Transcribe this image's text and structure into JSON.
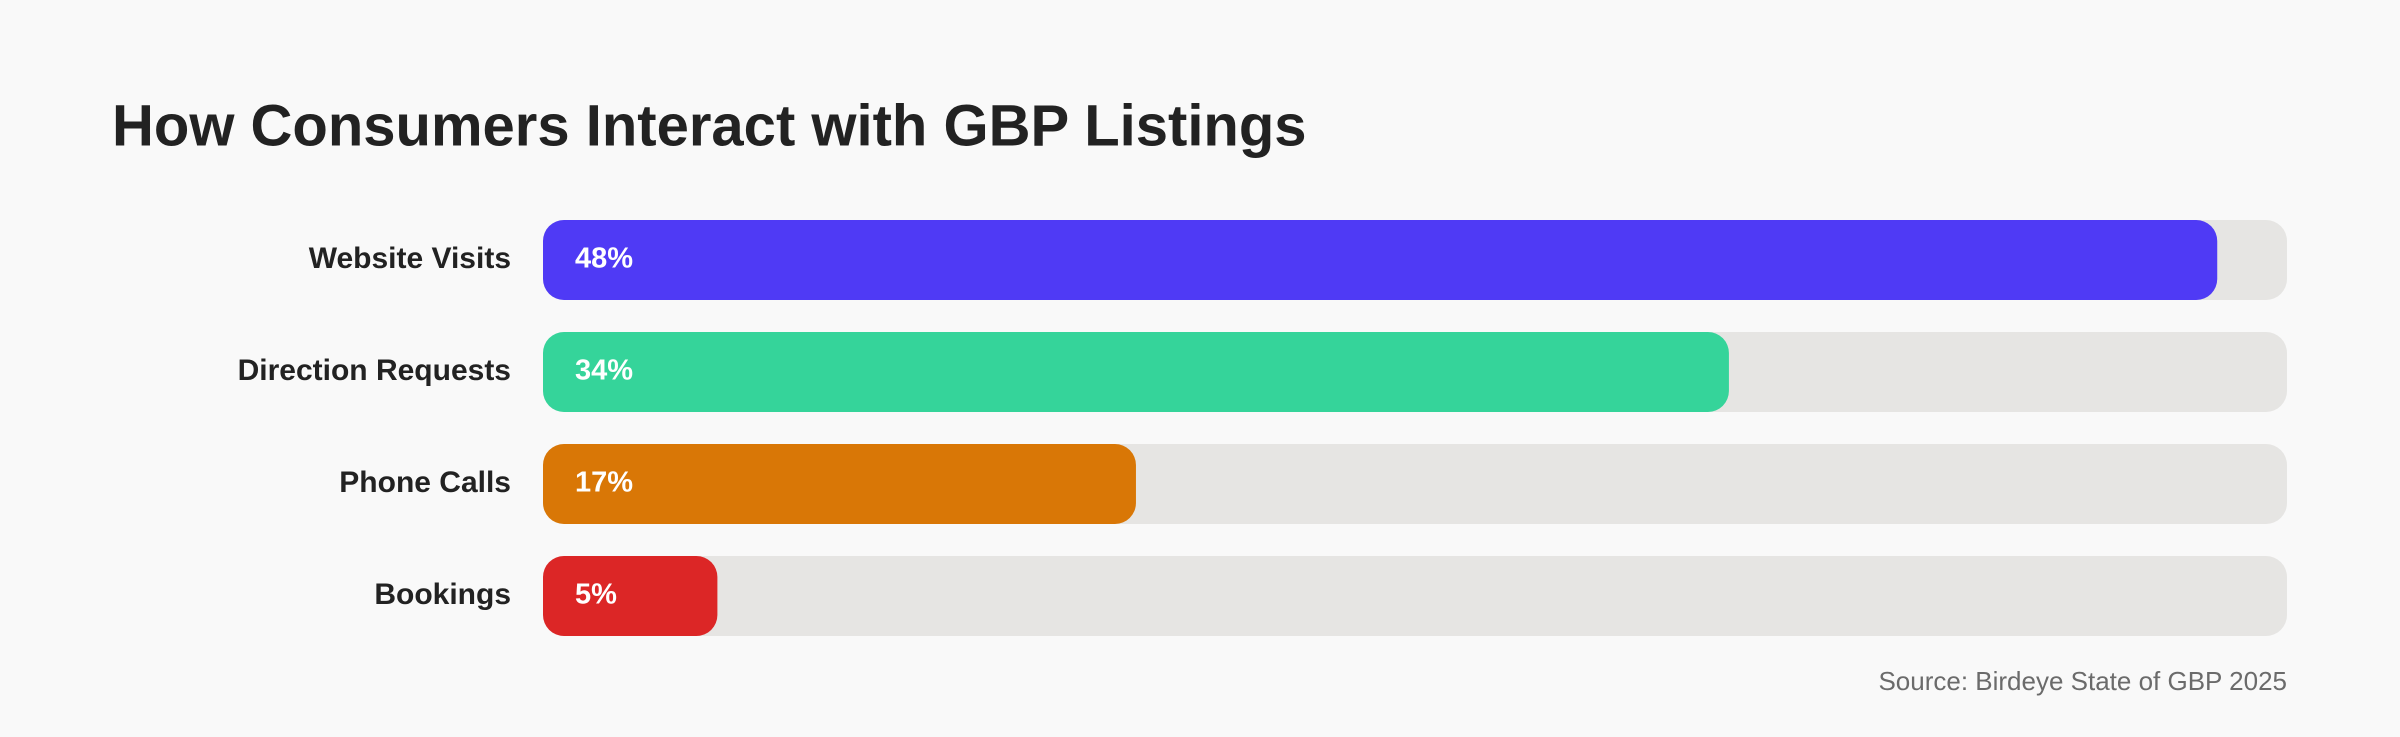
{
  "chart_data": {
    "type": "bar",
    "orientation": "horizontal",
    "title": "How Consumers Interact with GBP Listings",
    "categories": [
      "Website Visits",
      "Direction Requests",
      "Phone Calls",
      "Bookings"
    ],
    "values": [
      48,
      34,
      17,
      5
    ],
    "value_labels": [
      "48%",
      "34%",
      "17%",
      "5%"
    ],
    "colors": [
      "#4f3af5",
      "#35d49a",
      "#d97706",
      "#dc2626"
    ],
    "xlim": [
      0,
      50
    ],
    "source": "Source: Birdeye State of GBP 2025"
  }
}
